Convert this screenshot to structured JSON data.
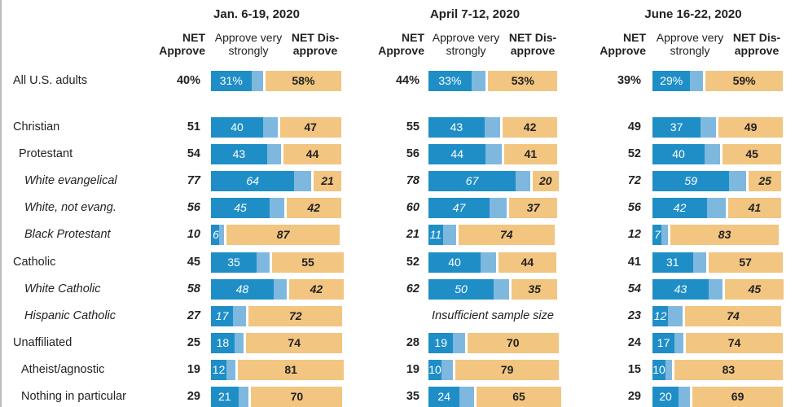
{
  "colors": {
    "strong": "#1f8ec7",
    "approve": "#7fb8df",
    "disapprove": "#f2c581"
  },
  "chart_data": {
    "type": "bar",
    "periods": [
      "Jan. 6-19, 2020",
      "April 7-12, 2020",
      "June 16-22, 2020"
    ],
    "column_headers": {
      "net_approve": "NET Approve",
      "approve_very_strongly": "Approve very strongly",
      "net_disapprove": "NET Dis- approve"
    },
    "insufficient_label": "Insufficient sample size",
    "rows": [
      {
        "label": "All U.S. adults",
        "italic": false,
        "data": [
          {
            "net": "40%",
            "strong": 31,
            "strong_text": "31%",
            "disapprove": 58,
            "dis_text": "58%"
          },
          {
            "net": "44%",
            "strong": 33,
            "strong_text": "33%",
            "disapprove": 53,
            "dis_text": "53%"
          },
          {
            "net": "39%",
            "strong": 29,
            "strong_text": "29%",
            "disapprove": 59,
            "dis_text": "59%"
          }
        ]
      },
      {
        "label": "Christian",
        "italic": false,
        "data": [
          {
            "net": "51",
            "strong": 40,
            "strong_text": "40",
            "disapprove": 47,
            "dis_text": "47"
          },
          {
            "net": "55",
            "strong": 43,
            "strong_text": "43",
            "disapprove": 42,
            "dis_text": "42"
          },
          {
            "net": "49",
            "strong": 37,
            "strong_text": "37",
            "disapprove": 49,
            "dis_text": "49"
          }
        ]
      },
      {
        "label": "Protestant",
        "italic": false,
        "data": [
          {
            "net": "54",
            "strong": 43,
            "strong_text": "43",
            "disapprove": 44,
            "dis_text": "44"
          },
          {
            "net": "56",
            "strong": 44,
            "strong_text": "44",
            "disapprove": 41,
            "dis_text": "41"
          },
          {
            "net": "52",
            "strong": 40,
            "strong_text": "40",
            "disapprove": 45,
            "dis_text": "45"
          }
        ]
      },
      {
        "label": "White evangelical",
        "italic": true,
        "data": [
          {
            "net": "77",
            "strong": 64,
            "strong_text": "64",
            "disapprove": 21,
            "dis_text": "21"
          },
          {
            "net": "78",
            "strong": 67,
            "strong_text": "67",
            "disapprove": 20,
            "dis_text": "20"
          },
          {
            "net": "72",
            "strong": 59,
            "strong_text": "59",
            "disapprove": 25,
            "dis_text": "25"
          }
        ]
      },
      {
        "label": "White, not evang.",
        "italic": true,
        "data": [
          {
            "net": "56",
            "strong": 45,
            "strong_text": "45",
            "disapprove": 42,
            "dis_text": "42"
          },
          {
            "net": "60",
            "strong": 47,
            "strong_text": "47",
            "disapprove": 37,
            "dis_text": "37"
          },
          {
            "net": "56",
            "strong": 42,
            "strong_text": "42",
            "disapprove": 41,
            "dis_text": "41"
          }
        ]
      },
      {
        "label": "Black Protestant",
        "italic": true,
        "data": [
          {
            "net": "10",
            "strong": 6,
            "strong_text": "6",
            "disapprove": 87,
            "dis_text": "87"
          },
          {
            "net": "21",
            "strong": 11,
            "strong_text": "11",
            "disapprove": 74,
            "dis_text": "74"
          },
          {
            "net": "12",
            "strong": 7,
            "strong_text": "7",
            "disapprove": 83,
            "dis_text": "83"
          }
        ]
      },
      {
        "label": "Catholic",
        "italic": false,
        "data": [
          {
            "net": "45",
            "strong": 35,
            "strong_text": "35",
            "disapprove": 55,
            "dis_text": "55"
          },
          {
            "net": "52",
            "strong": 40,
            "strong_text": "40",
            "disapprove": 44,
            "dis_text": "44"
          },
          {
            "net": "41",
            "strong": 31,
            "strong_text": "31",
            "disapprove": 57,
            "dis_text": "57"
          }
        ]
      },
      {
        "label": "White Catholic",
        "italic": true,
        "data": [
          {
            "net": "58",
            "strong": 48,
            "strong_text": "48",
            "disapprove": 42,
            "dis_text": "42"
          },
          {
            "net": "62",
            "strong": 50,
            "strong_text": "50",
            "disapprove": 35,
            "dis_text": "35"
          },
          {
            "net": "54",
            "strong": 43,
            "strong_text": "43",
            "disapprove": 45,
            "dis_text": "45"
          }
        ]
      },
      {
        "label": "Hispanic Catholic",
        "italic": true,
        "data": [
          {
            "net": "27",
            "strong": 17,
            "strong_text": "17",
            "disapprove": 72,
            "dis_text": "72"
          },
          null,
          {
            "net": "23",
            "strong": 12,
            "strong_text": "12",
            "disapprove": 74,
            "dis_text": "74"
          }
        ]
      },
      {
        "label": "Unaffiliated",
        "italic": false,
        "data": [
          {
            "net": "25",
            "strong": 18,
            "strong_text": "18",
            "disapprove": 74,
            "dis_text": "74"
          },
          {
            "net": "28",
            "strong": 19,
            "strong_text": "19",
            "disapprove": 70,
            "dis_text": "70"
          },
          {
            "net": "24",
            "strong": 17,
            "strong_text": "17",
            "disapprove": 74,
            "dis_text": "74"
          }
        ]
      },
      {
        "label": "Atheist/agnostic",
        "italic": false,
        "data": [
          {
            "net": "19",
            "strong": 12,
            "strong_text": "12",
            "disapprove": 81,
            "dis_text": "81"
          },
          {
            "net": "19",
            "strong": 10,
            "strong_text": "10",
            "disapprove": 79,
            "dis_text": "79"
          },
          {
            "net": "15",
            "strong": 10,
            "strong_text": "10",
            "disapprove": 83,
            "dis_text": "83"
          }
        ]
      },
      {
        "label": "Nothing in particular",
        "italic": false,
        "data": [
          {
            "net": "29",
            "strong": 21,
            "strong_text": "21",
            "disapprove": 70,
            "dis_text": "70"
          },
          {
            "net": "35",
            "strong": 24,
            "strong_text": "24",
            "disapprove": 65,
            "dis_text": "65"
          },
          {
            "net": "29",
            "strong": 20,
            "strong_text": "20",
            "disapprove": 69,
            "dis_text": "69"
          }
        ]
      }
    ]
  }
}
